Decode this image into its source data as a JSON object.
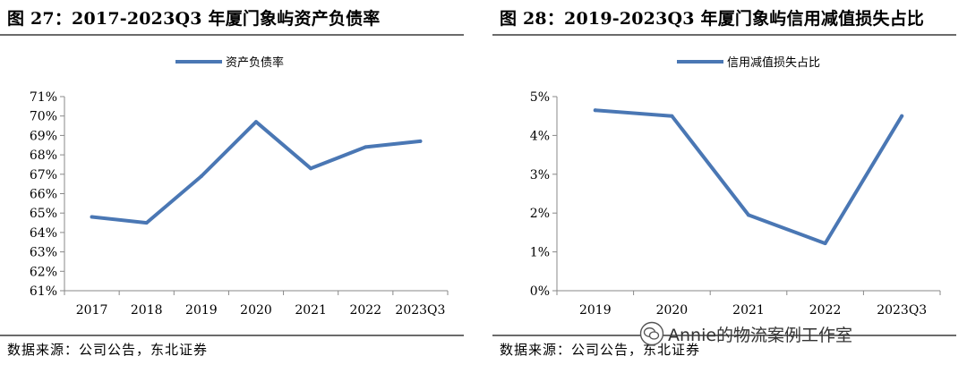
{
  "panels": [
    {
      "title": "图 27：2017-2023Q3 年厦门象屿资产负债率",
      "source": "数据来源：公司公告，东北证券"
    },
    {
      "title": "图 28：2019-2023Q3 年厦门象屿信用减值损失占比",
      "source": "数据来源：公司公告，东北证券"
    }
  ],
  "watermark": "Annie的物流案例工作室",
  "chart_data": [
    {
      "type": "line",
      "categories": [
        "2017",
        "2018",
        "2019",
        "2020",
        "2021",
        "2022",
        "2023Q3"
      ],
      "series": [
        {
          "name": "资产负债率",
          "values": [
            64.8,
            64.5,
            66.9,
            69.7,
            67.3,
            68.4,
            68.7
          ]
        }
      ],
      "ylim": [
        61,
        71
      ],
      "yticks": [
        "61%",
        "62%",
        "63%",
        "64%",
        "65%",
        "66%",
        "67%",
        "68%",
        "69%",
        "70%",
        "71%"
      ],
      "ytick_values": [
        61,
        62,
        63,
        64,
        65,
        66,
        67,
        68,
        69,
        70,
        71
      ],
      "xlabel": "",
      "ylabel": "",
      "legend_position": "top-center",
      "grid": false,
      "color": "#4a77b4"
    },
    {
      "type": "line",
      "categories": [
        "2019",
        "2020",
        "2021",
        "2022",
        "2023Q3"
      ],
      "series": [
        {
          "name": "信用减值损失占比",
          "values": [
            4.65,
            4.5,
            1.95,
            1.22,
            4.5
          ]
        }
      ],
      "ylim": [
        0,
        5
      ],
      "yticks": [
        "0%",
        "1%",
        "2%",
        "3%",
        "4%",
        "5%"
      ],
      "ytick_values": [
        0,
        1,
        2,
        3,
        4,
        5
      ],
      "xlabel": "",
      "ylabel": "",
      "legend_position": "top-center",
      "grid": false,
      "color": "#4a77b4"
    }
  ]
}
